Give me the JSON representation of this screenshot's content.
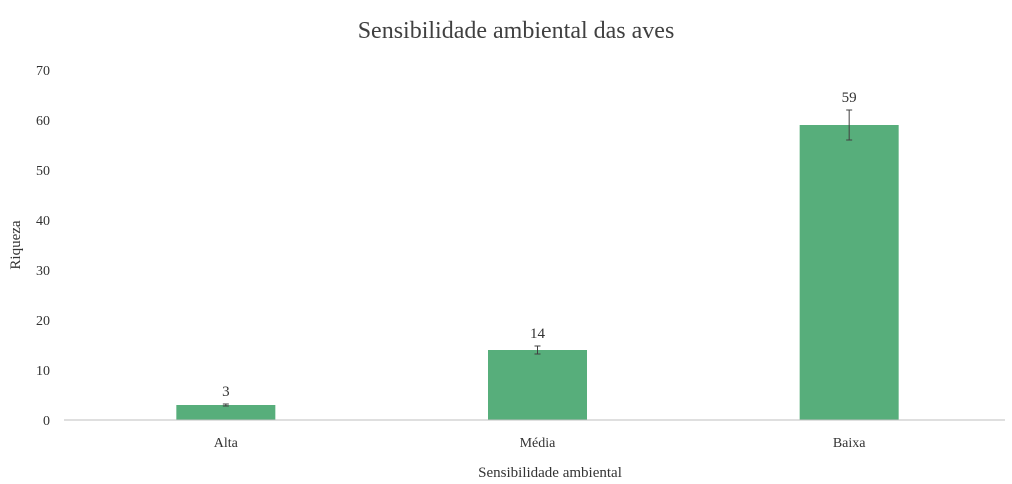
{
  "chart_data": {
    "type": "bar",
    "title": "Sensibilidade ambiental das aves",
    "xlabel": "Sensibilidade ambiental",
    "ylabel": "Riqueza",
    "categories": [
      "Alta",
      "Média",
      "Baixa"
    ],
    "values": [
      3,
      14,
      59
    ],
    "error": [
      0.2,
      0.8,
      3
    ],
    "data_labels": [
      "3",
      "14",
      "59"
    ],
    "ylim": [
      0,
      70
    ],
    "yticks": [
      0,
      10,
      20,
      30,
      40,
      50,
      60,
      70
    ],
    "grid": false,
    "legend": "none",
    "bar_color": "#57ae7b"
  }
}
